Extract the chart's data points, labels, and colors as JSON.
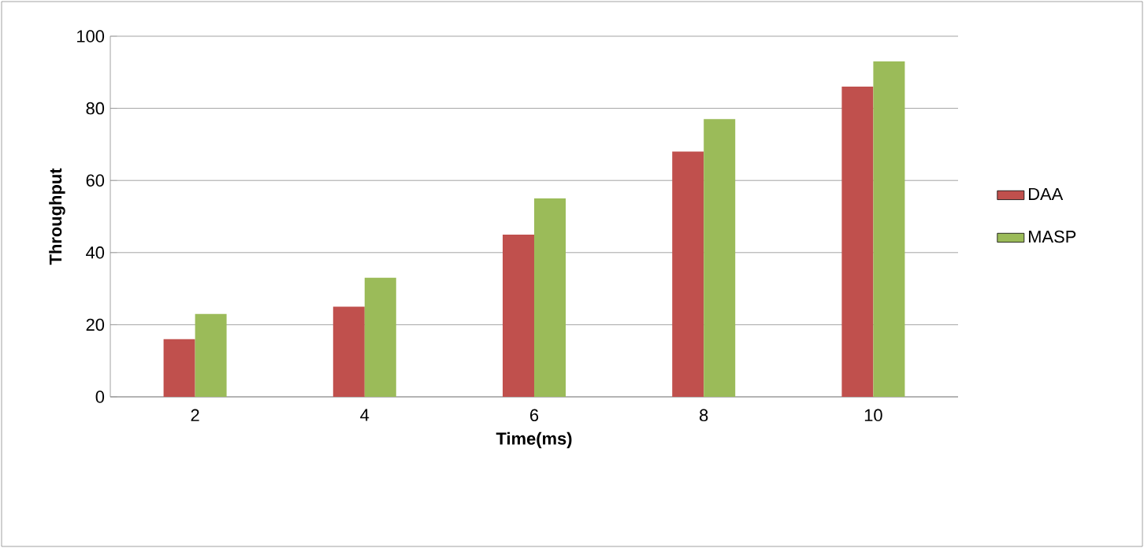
{
  "chart_data": {
    "type": "bar",
    "xlabel": "Time(ms)",
    "ylabel": "Throughput",
    "categories": [
      "2",
      "4",
      "6",
      "8",
      "10"
    ],
    "series": [
      {
        "name": "DAA",
        "color": "#c0504d",
        "values": [
          16,
          25,
          45,
          68,
          86
        ]
      },
      {
        "name": "MASP",
        "color": "#9bbb59",
        "values": [
          23,
          33,
          55,
          77,
          93
        ]
      }
    ],
    "ylim": [
      0,
      100
    ],
    "yticks": [
      0,
      20,
      40,
      60,
      80,
      100
    ],
    "grid": "y",
    "legend": "right"
  }
}
